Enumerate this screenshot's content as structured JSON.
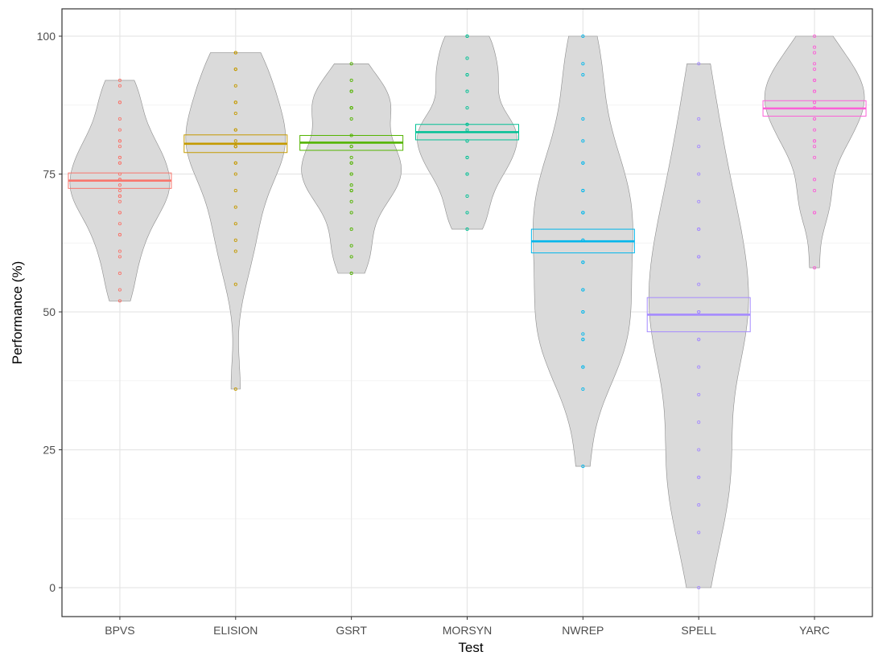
{
  "chart_data": {
    "type": "violin",
    "title": "",
    "xlabel": "Test",
    "ylabel": "Performance (%)",
    "ylim": [
      -5,
      105
    ],
    "yticks": [
      0,
      25,
      50,
      75,
      100
    ],
    "grid": true,
    "legend": "none",
    "categories": [
      "BPVS",
      "ELISION",
      "GSRT",
      "MORSYN",
      "NWREP",
      "SPELL",
      "YARC"
    ],
    "series": [
      {
        "category": "BPVS",
        "color": "#f8766d",
        "mean": 73.8,
        "ci": [
          72.4,
          75.2
        ],
        "range": [
          52,
          92
        ],
        "points": [
          92,
          91,
          88,
          88,
          85,
          83,
          81,
          81,
          80,
          78,
          78,
          77,
          77,
          75,
          74,
          74,
          73,
          72,
          71,
          71,
          71,
          70,
          68,
          68,
          66,
          64,
          64,
          61,
          60,
          57,
          54,
          52
        ]
      },
      {
        "category": "ELISION",
        "color": "#c49a00",
        "mean": 80.5,
        "ci": [
          78.9,
          82.1
        ],
        "range": [
          36,
          97
        ],
        "points": [
          97,
          97,
          94,
          94,
          91,
          88,
          88,
          86,
          83,
          83,
          81,
          80,
          80,
          80,
          77,
          77,
          75,
          72,
          69,
          66,
          63,
          61,
          55,
          36
        ]
      },
      {
        "category": "GSRT",
        "color": "#53b400",
        "mean": 80.7,
        "ci": [
          79.3,
          82.0
        ],
        "range": [
          57,
          95
        ],
        "points": [
          95,
          92,
          90,
          90,
          87,
          87,
          87,
          85,
          82,
          80,
          80,
          78,
          77,
          77,
          75,
          75,
          73,
          72,
          72,
          70,
          68,
          65,
          62,
          60,
          57
        ]
      },
      {
        "category": "MORSYN",
        "color": "#00c094",
        "mean": 82.6,
        "ci": [
          81.2,
          84.0
        ],
        "range": [
          65,
          100
        ],
        "points": [
          100,
          100,
          96,
          93,
          93,
          90,
          87,
          84,
          84,
          83,
          81,
          81,
          78,
          78,
          75,
          75,
          71,
          68,
          65
        ]
      },
      {
        "category": "NWREP",
        "color": "#00b6eb",
        "mean": 62.8,
        "ci": [
          60.7,
          65.0
        ],
        "range": [
          22,
          100
        ],
        "points": [
          100,
          95,
          93,
          85,
          81,
          77,
          77,
          72,
          72,
          68,
          68,
          68,
          63,
          63,
          59,
          59,
          54,
          54,
          50,
          50,
          46,
          45,
          45,
          40,
          40,
          36,
          22
        ]
      },
      {
        "category": "SPELL",
        "color": "#a58aff",
        "mean": 49.5,
        "ci": [
          46.4,
          52.6
        ],
        "range": [
          0,
          95
        ],
        "points": [
          95,
          85,
          80,
          75,
          70,
          65,
          65,
          60,
          60,
          55,
          50,
          50,
          50,
          45,
          45,
          40,
          35,
          30,
          25,
          20,
          20,
          15,
          10,
          0
        ]
      },
      {
        "category": "YARC",
        "color": "#fb61d7",
        "mean": 86.9,
        "ci": [
          85.5,
          88.3
        ],
        "range": [
          58,
          100
        ],
        "points": [
          100,
          98,
          97,
          95,
          94,
          92,
          92,
          92,
          90,
          90,
          88,
          88,
          87,
          87,
          85,
          85,
          83,
          81,
          81,
          80,
          78,
          74,
          72,
          68,
          68,
          58
        ]
      }
    ]
  }
}
